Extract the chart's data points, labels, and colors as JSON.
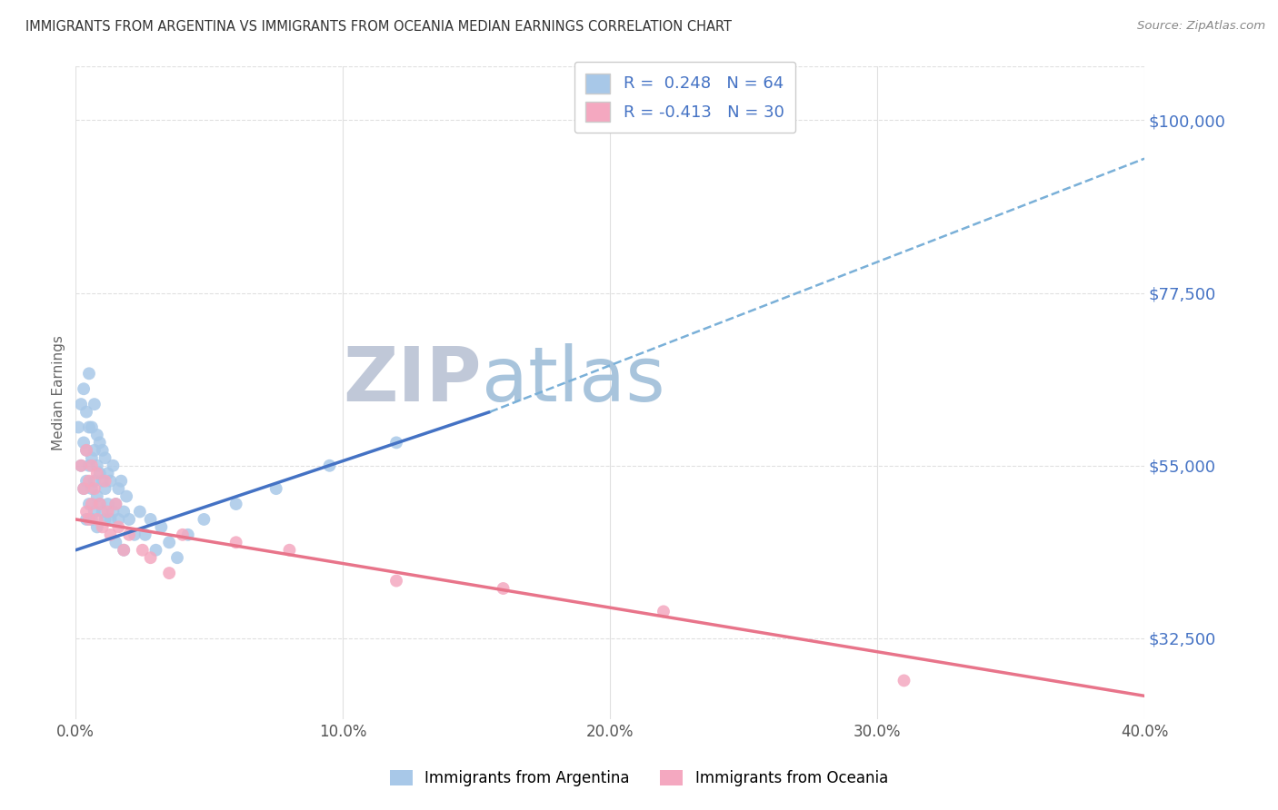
{
  "title": "IMMIGRANTS FROM ARGENTINA VS IMMIGRANTS FROM OCEANIA MEDIAN EARNINGS CORRELATION CHART",
  "source": "Source: ZipAtlas.com",
  "ylabel": "Median Earnings",
  "xlim": [
    0.0,
    0.4
  ],
  "ylim": [
    22000,
    107000
  ],
  "yticks": [
    32500,
    55000,
    77500,
    100000
  ],
  "ytick_labels": [
    "$32,500",
    "$55,000",
    "$77,500",
    "$100,000"
  ],
  "xticks": [
    0.0,
    0.1,
    0.2,
    0.3,
    0.4
  ],
  "xtick_labels": [
    "0.0%",
    "10.0%",
    "20.0%",
    "30.0%",
    "40.0%"
  ],
  "argentina_color": "#a8c8e8",
  "oceania_color": "#f4a8c0",
  "argentina_R": 0.248,
  "argentina_N": 64,
  "oceania_R": -0.413,
  "oceania_N": 30,
  "argentina_x": [
    0.001,
    0.002,
    0.002,
    0.003,
    0.003,
    0.003,
    0.004,
    0.004,
    0.004,
    0.004,
    0.005,
    0.005,
    0.005,
    0.005,
    0.006,
    0.006,
    0.006,
    0.006,
    0.007,
    0.007,
    0.007,
    0.007,
    0.008,
    0.008,
    0.008,
    0.008,
    0.009,
    0.009,
    0.009,
    0.01,
    0.01,
    0.01,
    0.011,
    0.011,
    0.011,
    0.012,
    0.012,
    0.013,
    0.013,
    0.014,
    0.014,
    0.015,
    0.015,
    0.016,
    0.016,
    0.017,
    0.018,
    0.018,
    0.019,
    0.02,
    0.022,
    0.024,
    0.026,
    0.028,
    0.03,
    0.032,
    0.035,
    0.038,
    0.042,
    0.048,
    0.06,
    0.075,
    0.095,
    0.12
  ],
  "argentina_y": [
    60000,
    63000,
    55000,
    58000,
    52000,
    65000,
    57000,
    62000,
    53000,
    48000,
    60000,
    55000,
    50000,
    67000,
    56000,
    52000,
    48000,
    60000,
    57000,
    53000,
    49000,
    63000,
    55000,
    51000,
    47000,
    59000,
    54000,
    50000,
    58000,
    53000,
    49000,
    57000,
    52000,
    48000,
    56000,
    50000,
    54000,
    48000,
    53000,
    49000,
    55000,
    50000,
    45000,
    52000,
    48000,
    53000,
    49000,
    44000,
    51000,
    48000,
    46000,
    49000,
    46000,
    48000,
    44000,
    47000,
    45000,
    43000,
    46000,
    48000,
    50000,
    52000,
    55000,
    58000
  ],
  "oceania_x": [
    0.002,
    0.003,
    0.004,
    0.004,
    0.005,
    0.005,
    0.006,
    0.006,
    0.007,
    0.008,
    0.008,
    0.009,
    0.01,
    0.011,
    0.012,
    0.013,
    0.015,
    0.016,
    0.018,
    0.02,
    0.025,
    0.028,
    0.035,
    0.04,
    0.06,
    0.08,
    0.12,
    0.16,
    0.22,
    0.31
  ],
  "oceania_y": [
    55000,
    52000,
    57000,
    49000,
    53000,
    48000,
    55000,
    50000,
    52000,
    48000,
    54000,
    50000,
    47000,
    53000,
    49000,
    46000,
    50000,
    47000,
    44000,
    46000,
    44000,
    43000,
    41000,
    46000,
    45000,
    44000,
    40000,
    39000,
    36000,
    27000
  ],
  "argentina_line_color": "#4472c4",
  "oceania_line_color": "#e8748a",
  "dashed_line_color": "#7ab0d8",
  "legend_R_color": "#4472c4",
  "background_color": "#ffffff",
  "grid_color": "#e0e0e0",
  "watermark_zip_color": "#c0c8d8",
  "watermark_atlas_color": "#a8c4dc",
  "title_color": "#333333",
  "axis_label_color": "#666666",
  "ytick_color": "#4472c4",
  "xtick_color": "#555555",
  "arg_line_x0": 0.0,
  "arg_line_y0": 44000,
  "arg_line_x1": 0.155,
  "arg_line_y1": 62000,
  "dash_line_x0": 0.155,
  "dash_line_y0": 62000,
  "dash_line_x1": 0.4,
  "dash_line_y1": 95000,
  "oce_line_x0": 0.0,
  "oce_line_y0": 48000,
  "oce_line_x1": 0.4,
  "oce_line_y1": 25000
}
